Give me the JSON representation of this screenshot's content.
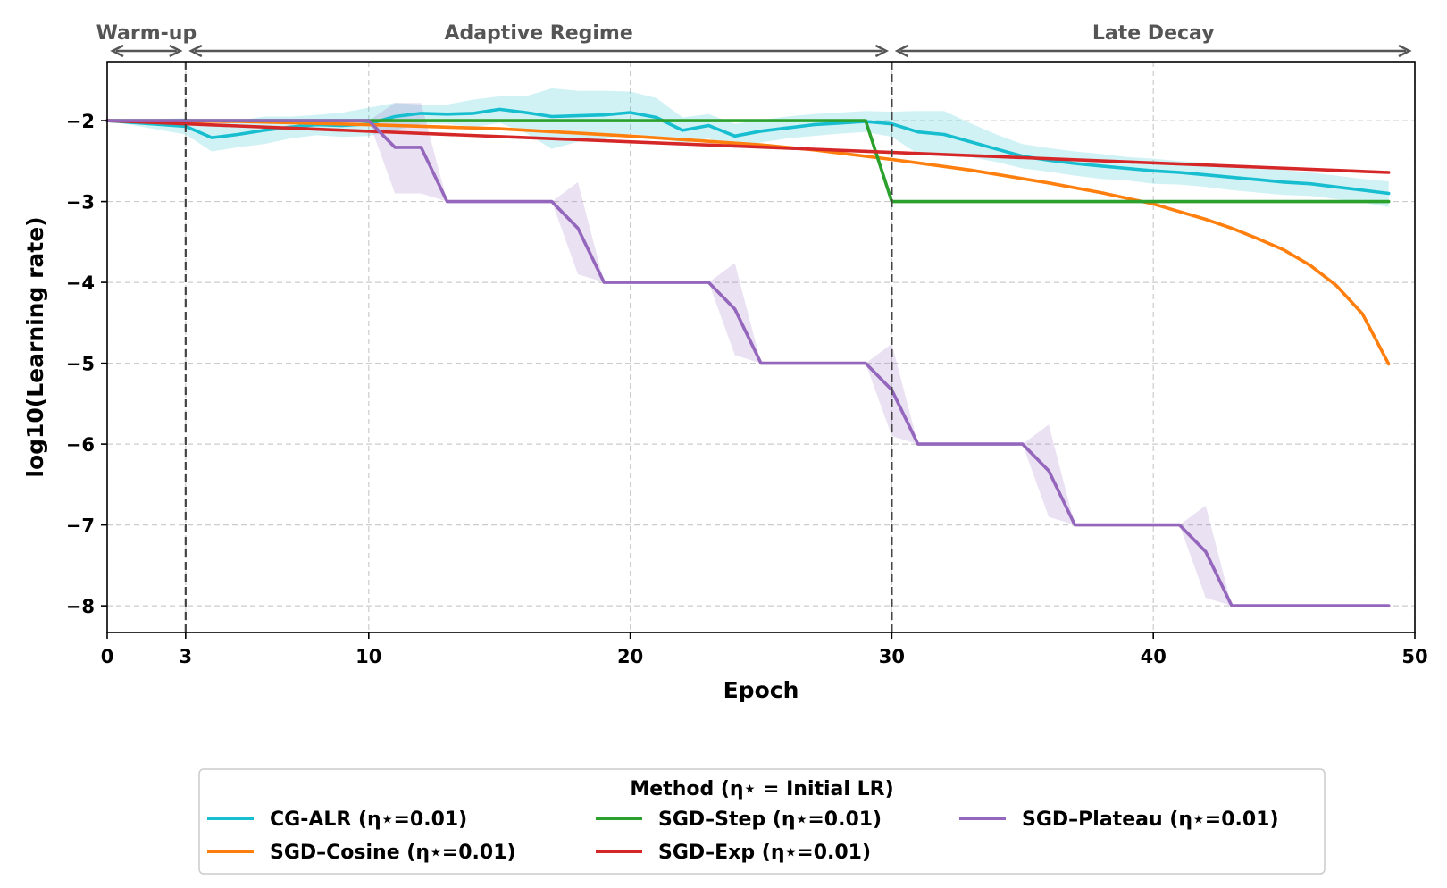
{
  "chart_data": {
    "type": "line",
    "title": "",
    "xlabel": "Epoch",
    "ylabel": "log10(Learning rate)",
    "xlim": [
      0,
      50
    ],
    "ylim": [
      -8.33,
      -1.27
    ],
    "xticks": [
      0,
      3,
      10,
      20,
      30,
      40,
      50
    ],
    "yticks": [
      -2,
      -3,
      -4,
      -5,
      -6,
      -7,
      -8
    ],
    "ytick_labels": [
      "−2",
      "−3",
      "−4",
      "−5",
      "−6",
      "−7",
      "−8"
    ],
    "grid": true,
    "vlines": [
      3,
      30
    ],
    "regions": [
      {
        "label": "Warm-up",
        "start": 0,
        "end": 3
      },
      {
        "label": "Adaptive Regime",
        "start": 3,
        "end": 30
      },
      {
        "label": "Late Decay",
        "start": 30,
        "end": 50
      }
    ],
    "legend": {
      "title": "Method (η⋆ = Initial LR)",
      "location": "bottom-center"
    },
    "series": [
      {
        "name": "CG-ALR (η⋆=0.01)",
        "color": "#17becf",
        "x": [
          0,
          3,
          4,
          5,
          6,
          7,
          8,
          9,
          10,
          11,
          12,
          13,
          14,
          15,
          16,
          17,
          18,
          19,
          20,
          21,
          22,
          23,
          24,
          25,
          26,
          27,
          28,
          29,
          30,
          31,
          32,
          33,
          34,
          35,
          36,
          37,
          38,
          39,
          40,
          41,
          42,
          43,
          44,
          45,
          46,
          47,
          48,
          49
        ],
        "values": [
          -2,
          -2.07,
          -2.21,
          -2.17,
          -2.12,
          -2.08,
          -2.05,
          -2.06,
          -2.04,
          -1.95,
          -1.91,
          -1.92,
          -1.91,
          -1.86,
          -1.9,
          -1.95,
          -1.94,
          -1.93,
          -1.9,
          -1.96,
          -2.12,
          -2.06,
          -2.19,
          -2.13,
          -2.09,
          -2.05,
          -2.03,
          -2.01,
          -2.04,
          -2.14,
          -2.17,
          -2.26,
          -2.35,
          -2.44,
          -2.49,
          -2.53,
          -2.56,
          -2.59,
          -2.62,
          -2.64,
          -2.67,
          -2.7,
          -2.73,
          -2.76,
          -2.78,
          -2.82,
          -2.86,
          -2.9
        ],
        "band_upper": [
          -2,
          -1.97,
          -2.05,
          -2.0,
          -1.95,
          -1.95,
          -1.93,
          -1.9,
          -1.84,
          -1.78,
          -1.8,
          -1.8,
          -1.74,
          -1.7,
          -1.7,
          -1.6,
          -1.63,
          -1.63,
          -1.64,
          -1.72,
          -1.96,
          -1.92,
          -2.04,
          -1.99,
          -1.95,
          -1.92,
          -1.9,
          -1.88,
          -1.89,
          -1.88,
          -1.88,
          -2.03,
          -2.17,
          -2.29,
          -2.34,
          -2.38,
          -2.41,
          -2.45,
          -2.47,
          -2.5,
          -2.52,
          -2.55,
          -2.58,
          -2.61,
          -2.64,
          -2.68,
          -2.72,
          -2.75
        ],
        "band_lower": [
          -2,
          -2.17,
          -2.38,
          -2.33,
          -2.29,
          -2.22,
          -2.18,
          -2.2,
          -2.19,
          -2.12,
          -2.04,
          -2.04,
          -2.08,
          -2.03,
          -2.15,
          -2.35,
          -2.26,
          -2.23,
          -2.16,
          -2.2,
          -2.28,
          -2.22,
          -2.34,
          -2.27,
          -2.22,
          -2.19,
          -2.16,
          -2.14,
          -2.2,
          -2.41,
          -2.44,
          -2.45,
          -2.51,
          -2.59,
          -2.63,
          -2.68,
          -2.72,
          -2.74,
          -2.78,
          -2.79,
          -2.82,
          -2.86,
          -2.89,
          -2.92,
          -2.93,
          -2.97,
          -3.01,
          -3.07
        ]
      },
      {
        "name": "SGD–Cosine (η⋆=0.01)",
        "color": "#ff7f0e",
        "x": [
          0,
          5,
          10,
          15,
          20,
          25,
          27,
          30,
          33,
          36,
          38,
          40,
          42,
          43,
          44,
          45,
          46,
          47,
          48,
          49
        ],
        "values": [
          -2,
          -2.01,
          -2.05,
          -2.1,
          -2.19,
          -2.3,
          -2.36,
          -2.48,
          -2.61,
          -2.77,
          -2.89,
          -3.03,
          -3.22,
          -3.33,
          -3.46,
          -3.6,
          -3.79,
          -4.04,
          -4.39,
          -5.01
        ]
      },
      {
        "name": "SGD–Step (η⋆=0.01)",
        "color": "#2ca02c",
        "x": [
          0,
          29,
          30,
          49
        ],
        "values": [
          -2,
          -2,
          -3,
          -3
        ]
      },
      {
        "name": "SGD–Exp (η⋆=0.01)",
        "color": "#d62728",
        "x": [
          0,
          49
        ],
        "values": [
          -2,
          -2.64
        ]
      },
      {
        "name": "SGD–Plateau (η⋆=0.01)",
        "color": "#9467bd",
        "x": [
          0,
          10,
          11,
          12,
          13,
          17,
          18,
          19,
          23,
          24,
          25,
          29,
          30,
          31,
          35,
          36,
          37,
          41,
          42,
          43,
          49
        ],
        "values": [
          -2,
          -2,
          -2.33,
          -2.33,
          -3,
          -3,
          -3.33,
          -4,
          -4,
          -4.33,
          -5,
          -5,
          -5.33,
          -6,
          -6,
          -6.33,
          -7,
          -7,
          -7.33,
          -8,
          -8
        ],
        "band_upper": [
          -2,
          -2,
          -1.78,
          -1.78,
          -3,
          -3,
          -2.76,
          -4,
          -4,
          -3.76,
          -5,
          -5,
          -4.76,
          -6,
          -6,
          -5.76,
          -7,
          -7,
          -6.76,
          -8,
          -8
        ],
        "band_lower": [
          -2,
          -2,
          -2.9,
          -2.9,
          -3,
          -3,
          -3.9,
          -4,
          -4,
          -4.9,
          -5,
          -5,
          -5.9,
          -6,
          -6,
          -6.9,
          -7,
          -7,
          -7.9,
          -8,
          -8
        ]
      }
    ]
  }
}
